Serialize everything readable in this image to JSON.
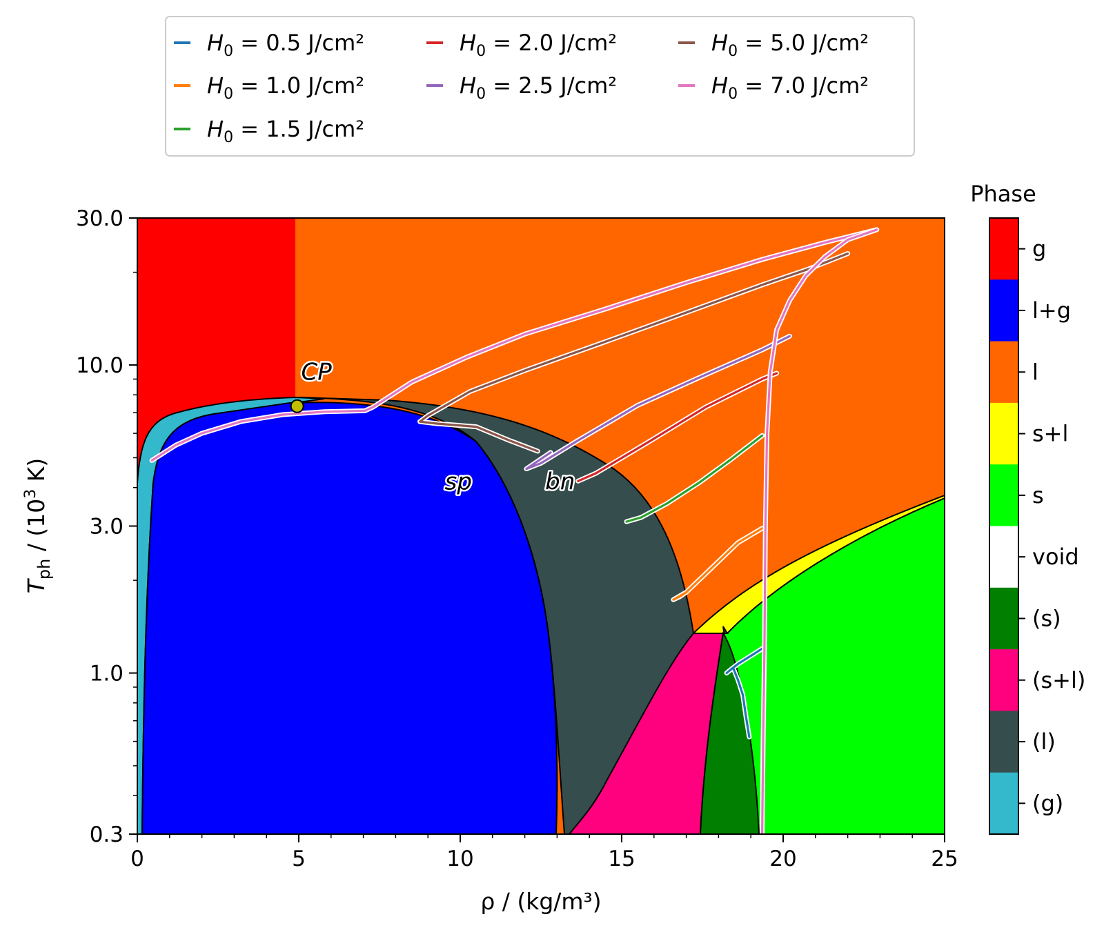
{
  "chart_data": {
    "type": "line",
    "xlabel": "ρ / (kg/m³)",
    "ylabel_main": "T",
    "ylabel_sub": "ph",
    "ylabel_rest": " / (10",
    "ylabel_sup": "3",
    "ylabel_end": " K)",
    "xlim": [
      0,
      25
    ],
    "ylim": [
      0.3,
      30.0
    ],
    "yscale": "log",
    "x_ticks": [
      0,
      5,
      10,
      15,
      20,
      25
    ],
    "x_tick_labels": [
      "0",
      "5",
      "10",
      "15",
      "20",
      "25"
    ],
    "y_ticks": [
      0.3,
      1.0,
      3.0,
      10.0,
      30.0
    ],
    "y_tick_labels": [
      "0.3",
      "1.0",
      "3.0",
      "10.0",
      "30.0"
    ],
    "legend": {
      "placement": "top-center",
      "prefix": "H",
      "prefix_sub": "0",
      "entries": [
        {
          "label": " = 0.5 J/cm²",
          "color": "#1f77b4"
        },
        {
          "label": " = 1.0 J/cm²",
          "color": "#ff7f0e"
        },
        {
          "label": " = 1.5 J/cm²",
          "color": "#2ca02c"
        },
        {
          "label": " = 2.0 J/cm²",
          "color": "#d62728"
        },
        {
          "label": " = 2.5 J/cm²",
          "color": "#9467bd"
        },
        {
          "label": " = 5.0 J/cm²",
          "color": "#8c564b"
        },
        {
          "label": " = 7.0 J/cm²",
          "color": "#e377c2"
        }
      ]
    },
    "colorbar": {
      "title": "Phase",
      "categories": [
        "g",
        "l+g",
        "l",
        "s+l",
        "s",
        "void",
        "(s)",
        "(s+l)",
        "(l)",
        "(g)"
      ],
      "colors": [
        "#ff0000",
        "#0000ff",
        "#ff6600",
        "#ffff00",
        "#00ff00",
        "#ffffff",
        "#007f00",
        "#ff007f",
        "#364d4d",
        "#33b8cc"
      ]
    },
    "annotations": [
      {
        "text": "CP",
        "x": 4.95,
        "y": 7.35
      },
      {
        "text": "sp",
        "x": 9.9,
        "y": 4.2
      },
      {
        "text": "bn",
        "x": 13.05,
        "y": 4.2
      }
    ],
    "critical_point": {
      "x": 4.95,
      "y": 7.35,
      "color": "#bfbf00"
    },
    "series": [
      {
        "name": " = 0.5 J/cm²",
        "color": "#1f77b4",
        "points": [
          [
            19.35,
            1.2
          ],
          [
            18.6,
            1.07
          ],
          [
            18.25,
            1.0
          ],
          [
            18.45,
            1.04
          ],
          [
            18.6,
            0.95
          ],
          [
            18.75,
            0.85
          ],
          [
            18.85,
            0.72
          ],
          [
            18.95,
            0.62
          ]
        ]
      },
      {
        "name": " = 1.0 J/cm²",
        "color": "#ff7f0e",
        "points": [
          [
            19.35,
            2.95
          ],
          [
            18.6,
            2.65
          ],
          [
            17.8,
            2.2
          ],
          [
            17.0,
            1.83
          ],
          [
            16.6,
            1.73
          ],
          [
            16.8,
            1.77
          ],
          [
            17.0,
            1.83
          ]
        ]
      },
      {
        "name": " = 1.5 J/cm²",
        "color": "#2ca02c",
        "points": [
          [
            19.35,
            5.9
          ],
          [
            18.4,
            4.95
          ],
          [
            17.4,
            4.15
          ],
          [
            16.4,
            3.55
          ],
          [
            15.6,
            3.2
          ],
          [
            15.15,
            3.1
          ],
          [
            15.6,
            3.2
          ]
        ]
      },
      {
        "name": " = 2.0 J/cm²",
        "color": "#d62728",
        "points": [
          [
            19.8,
            9.4
          ],
          [
            19.35,
            9.0
          ],
          [
            17.6,
            7.3
          ],
          [
            15.8,
            5.6
          ],
          [
            14.2,
            4.45
          ],
          [
            13.65,
            4.2
          ],
          [
            14.2,
            4.45
          ]
        ]
      },
      {
        "name": " = 2.5 J/cm²",
        "color": "#9467bd",
        "points": [
          [
            20.2,
            12.4
          ],
          [
            19.35,
            11.2
          ],
          [
            17.5,
            9.2
          ],
          [
            15.5,
            7.4
          ],
          [
            13.6,
            5.65
          ],
          [
            12.5,
            4.8
          ],
          [
            12.05,
            4.6
          ],
          [
            12.8,
            5.2
          ]
        ]
      },
      {
        "name": " = 5.0 J/cm²",
        "color": "#8c564b",
        "points": [
          [
            22.0,
            23.0
          ],
          [
            20.8,
            20.5
          ],
          [
            19.35,
            18.2
          ],
          [
            17.0,
            14.8
          ],
          [
            14.5,
            11.9
          ],
          [
            12.0,
            9.6
          ],
          [
            10.3,
            8.2
          ],
          [
            9.0,
            6.85
          ],
          [
            8.75,
            6.55
          ],
          [
            9.3,
            6.45
          ],
          [
            10.5,
            6.3
          ],
          [
            11.5,
            5.7
          ],
          [
            12.4,
            5.25
          ]
        ]
      },
      {
        "name": " = 7.0 J/cm²",
        "color": "#e377c2",
        "points": [
          [
            22.9,
            27.5
          ],
          [
            21.3,
            25.0
          ],
          [
            19.35,
            22.0
          ],
          [
            17.0,
            18.5
          ],
          [
            14.5,
            15.2
          ],
          [
            12.0,
            12.6
          ],
          [
            10.2,
            10.6
          ],
          [
            8.5,
            8.8
          ],
          [
            7.3,
            7.3
          ],
          [
            7.05,
            7.1
          ],
          [
            5.8,
            7.05
          ],
          [
            4.5,
            6.9
          ],
          [
            3.2,
            6.55
          ],
          [
            2.0,
            6.0
          ],
          [
            1.2,
            5.5
          ],
          [
            0.45,
            4.9
          ]
        ]
      },
      {
        "name": " = 7.0 J/cm²",
        "color": "#e377c2",
        "points": [
          [
            22.9,
            27.5
          ],
          [
            22.0,
            25.5
          ],
          [
            21.3,
            22.5
          ],
          [
            20.7,
            19.5
          ],
          [
            20.2,
            16.2
          ],
          [
            19.8,
            13.0
          ],
          [
            19.6,
            9.5
          ],
          [
            19.5,
            6.0
          ],
          [
            19.45,
            3.0
          ],
          [
            19.42,
            1.2
          ],
          [
            19.38,
            0.6
          ],
          [
            19.35,
            0.3
          ]
        ]
      }
    ]
  }
}
